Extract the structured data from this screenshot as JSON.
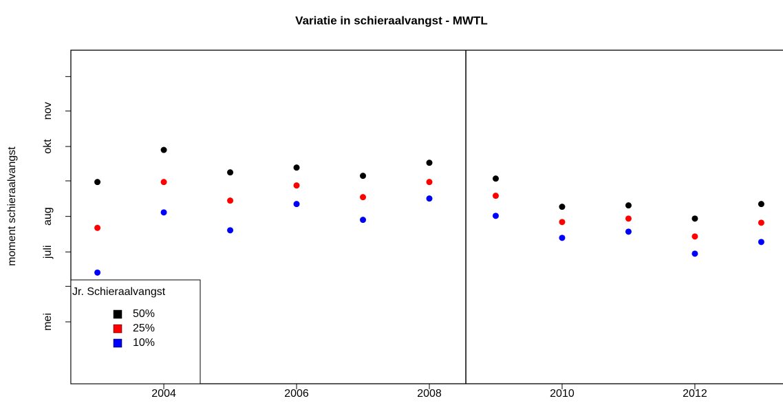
{
  "chart_data": {
    "type": "scatter",
    "title": "Variatie in schieraalvangst - MWTL",
    "y_label": "moment schieraalvangst",
    "x": [
      2003,
      2004,
      2005,
      2006,
      2007,
      2008,
      2009,
      2010,
      2011,
      2012,
      2013
    ],
    "series": [
      {
        "name": "50%",
        "color": "#000000",
        "values": [
          243,
          271,
          251.4,
          255.6,
          248.4,
          259.8,
          246,
          221.4,
          222.6,
          211.1,
          223.8
        ]
      },
      {
        "name": "25%",
        "color": "#ff0000",
        "values": [
          203,
          243,
          226.8,
          240,
          229.8,
          243,
          231,
          208.1,
          211.1,
          195.5,
          207.5
        ]
      },
      {
        "name": "10%",
        "color": "#0000ff",
        "values": [
          164,
          216.5,
          200.9,
          223.8,
          210,
          228.6,
          213.5,
          194.3,
          199.7,
          180.5,
          190.7
        ]
      }
    ],
    "legend_title": "Jr. Schieraalvangst",
    "legend_position": "bottom-left",
    "xlim": [
      2002.6,
      2013.4
    ],
    "xticks": [
      2004,
      2006,
      2008,
      2010,
      2012
    ],
    "ylim": [
      67,
      358
    ],
    "yticks": [
      {
        "value": 121,
        "label": "mei"
      },
      {
        "value": 182,
        "label": "juli"
      },
      {
        "value": 213,
        "label": "aug"
      },
      {
        "value": 274,
        "label": "okt"
      },
      {
        "value": 305,
        "label": "nov"
      }
    ],
    "yminor_ticks": [
      152,
      244,
      335
    ],
    "vline": 2008.55
  }
}
